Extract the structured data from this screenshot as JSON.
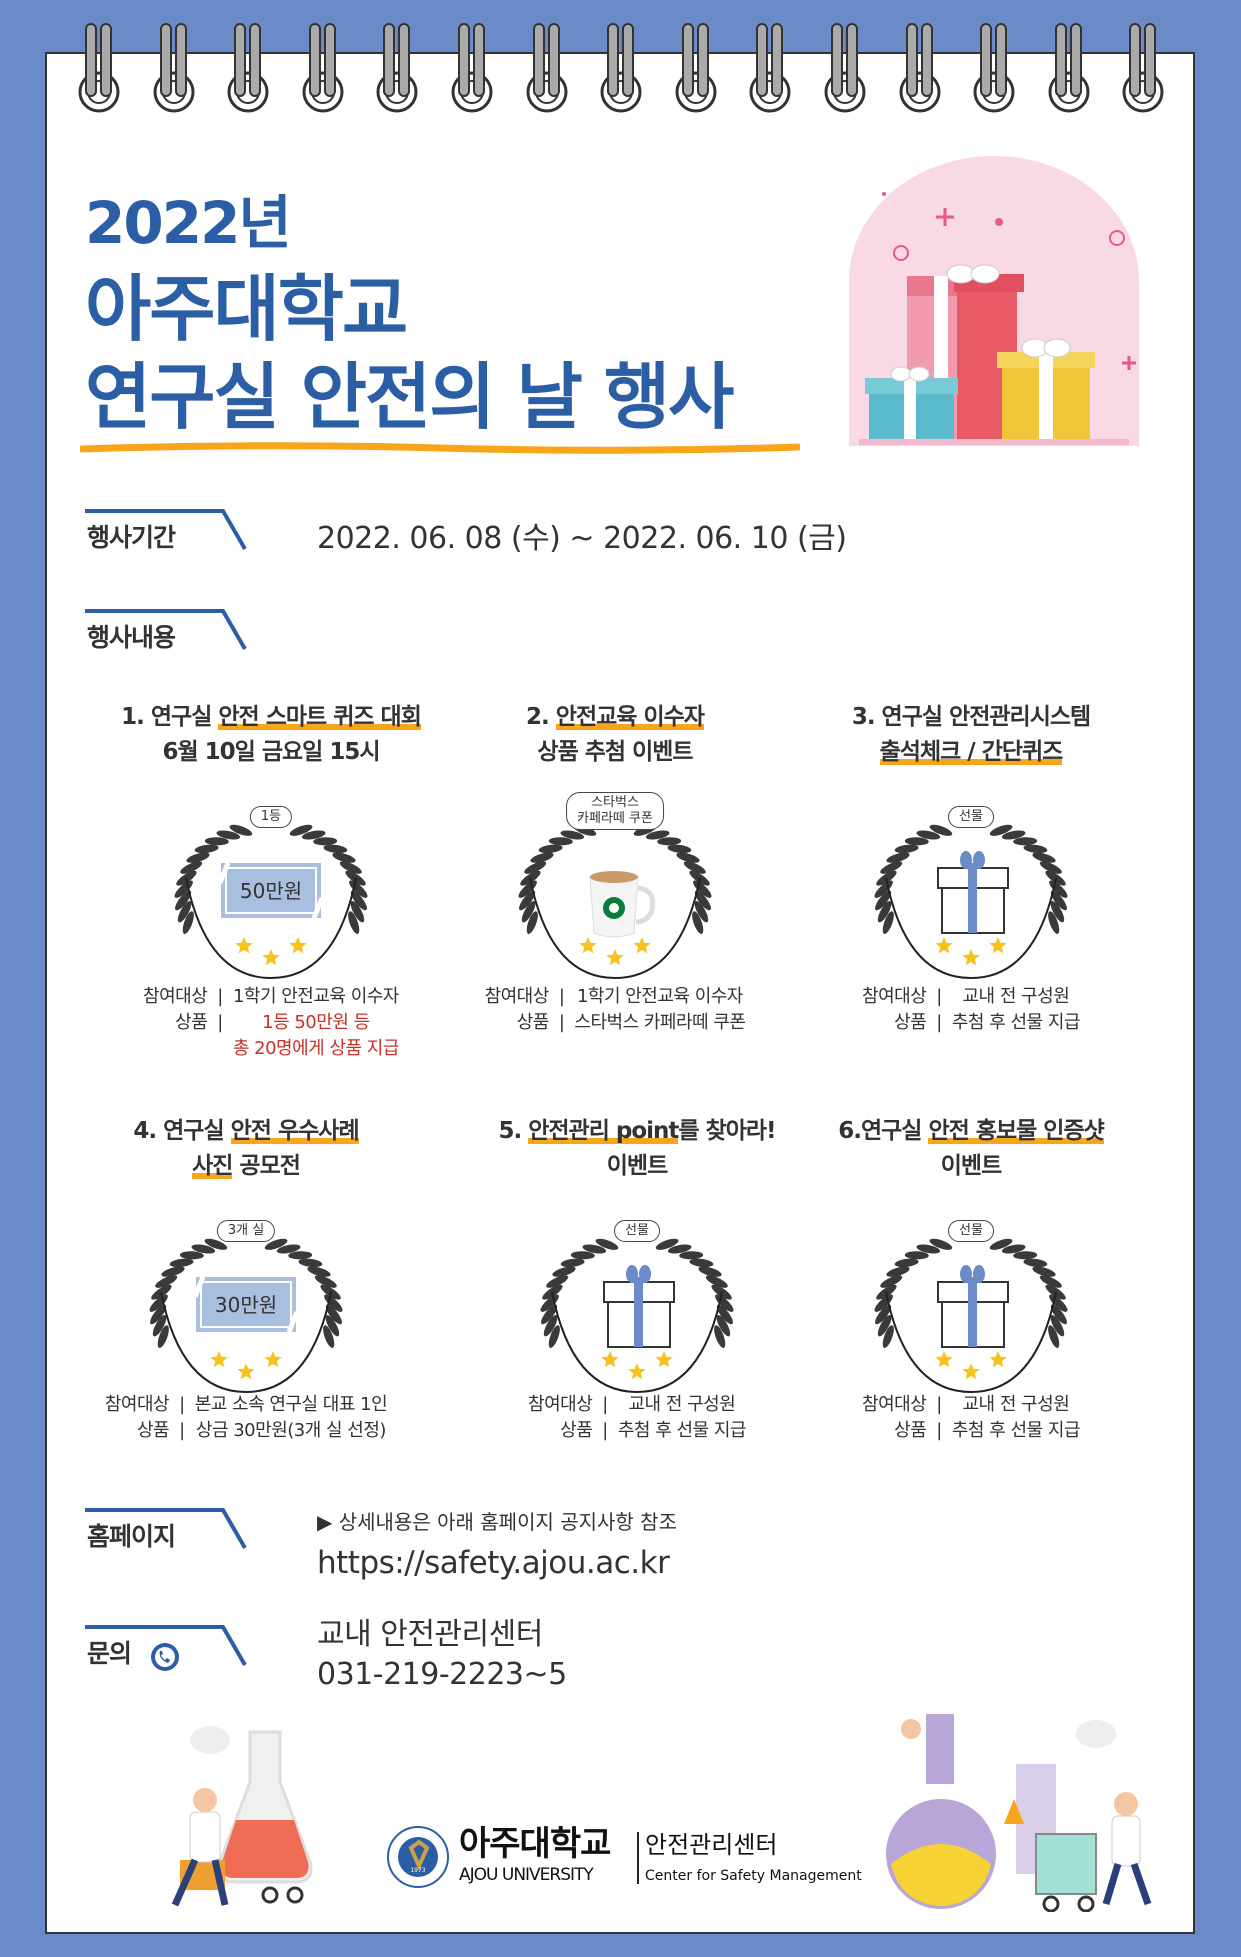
{
  "colors": {
    "frame": "#6a8bc8",
    "title": "#2b5ea4",
    "highlight": "#f7a51c",
    "red": "#c8302a",
    "ribbon": "#6a8bc8"
  },
  "header": {
    "title_line1": "2022년",
    "title_line2": "아주대학교",
    "title_line3": "연구실 안전의 날 행사"
  },
  "period": {
    "label": "행사기간",
    "value": "2022. 06. 08 (수) ~ 2022. 06. 10 (금)"
  },
  "contents": {
    "label": "행사내용"
  },
  "items": [
    {
      "title": [
        [
          {
            "text": "1. 연구실 "
          },
          {
            "text": "안전 스마트 퀴즈 대회",
            "hl": true
          }
        ],
        [
          {
            "text": "6월 10일 금요일 15시"
          }
        ]
      ],
      "badge": "1등",
      "prize": "cash",
      "amount": "50만원",
      "desc": [
        {
          "label": "참여대상",
          "value": "1학기 안전교육 이수자"
        },
        {
          "label": "상품",
          "value": "1등 50만원 등",
          "red": true
        },
        {
          "label": "",
          "value": "총 20명에게 상품 지급",
          "red": true
        }
      ]
    },
    {
      "title": [
        [
          {
            "text": "2. "
          },
          {
            "text": "안전교육 이수자",
            "hl": true
          }
        ],
        [
          {
            "text": "상품 추첨 이벤트"
          }
        ]
      ],
      "badge": "스타벅스\n카페라떼 쿠폰",
      "prize": "coffee",
      "desc": [
        {
          "label": "참여대상",
          "value": "1학기 안전교육 이수자"
        },
        {
          "label": "상품",
          "value": "스타벅스 카페라떼 쿠폰"
        }
      ]
    },
    {
      "title": [
        [
          {
            "text": "3. 연구실 안전관리시스템"
          }
        ],
        [
          {
            "text": "출석체크 / 간단퀴즈",
            "hl": true
          }
        ]
      ],
      "badge": "선물",
      "prize": "gift",
      "desc": [
        {
          "label": "참여대상",
          "value": "교내 전 구성원"
        },
        {
          "label": "상품",
          "value": "추첨 후 선물 지급"
        }
      ]
    },
    {
      "title": [
        [
          {
            "text": "4. 연구실 "
          },
          {
            "text": "안전 우수사례",
            "hl": true
          }
        ],
        [
          {
            "text": "사진",
            "hl": true
          },
          {
            "text": " 공모전"
          }
        ]
      ],
      "badge": "3개 실",
      "prize": "cash",
      "amount": "30만원",
      "desc": [
        {
          "label": "참여대상",
          "value": "본교 소속 연구실 대표 1인"
        },
        {
          "label": "상품",
          "value": "상금 30만원(3개 실 선정)"
        }
      ]
    },
    {
      "title": [
        [
          {
            "text": "5. "
          },
          {
            "text": "안전관리 point",
            "hl": true
          },
          {
            "text": "를 찾아라!"
          }
        ],
        [
          {
            "text": "이벤트"
          }
        ]
      ],
      "badge": "선물",
      "prize": "gift",
      "desc": [
        {
          "label": "참여대상",
          "value": "교내 전 구성원"
        },
        {
          "label": "상품",
          "value": "추첨 후 선물 지급"
        }
      ]
    },
    {
      "title": [
        [
          {
            "text": "6.연구실 "
          },
          {
            "text": "안전 홍보물 인증샷",
            "hl": true
          }
        ],
        [
          {
            "text": "이벤트"
          }
        ]
      ],
      "badge": "선물",
      "prize": "gift",
      "desc": [
        {
          "label": "참여대상",
          "value": "교내 전 구성원"
        },
        {
          "label": "상품",
          "value": "추첨 후 선물 지급"
        }
      ]
    }
  ],
  "homepage": {
    "label": "홈페이지",
    "note": "상세내용은 아래 홈페이지 공지사항 참조",
    "url": "https://safety.ajou.ac.kr"
  },
  "contact": {
    "label": "문의",
    "icon": "phone-icon",
    "org": "교내 안전관리센터",
    "phone": "031-219-2223~5"
  },
  "footer": {
    "logo_kr": "아주대학교",
    "logo_en": "AJOU UNIVERSITY",
    "center_kr": "안전관리센터",
    "center_en": "Center for Safety Management",
    "seal_year": "1973"
  }
}
